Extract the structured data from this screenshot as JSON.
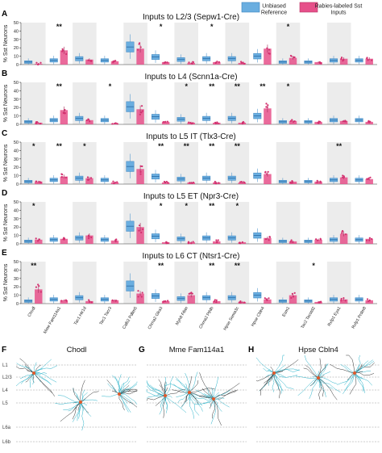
{
  "legend": {
    "reference_label": "Unbiased Reference",
    "sst_label": "Rabies-labeled Sst Inputs",
    "reference_color": "#6aaee0",
    "sst_color": "#e6508a",
    "position": "top-right"
  },
  "x_categories": [
    "Chodl",
    "Mme Fam114a1",
    "Tac1 Htr1d",
    "Tac1 Tacr3",
    "Calb2 Pdlim5",
    "Chrna2 Glra3",
    "Myh8 Fibin",
    "Chrna2 Pthlh",
    "Hpse Sema3c",
    "Hpse Cbln4",
    "Esm1",
    "Tac2 Tacstd2",
    "Rxfp1 Eya1",
    "Rxfp1 Prdm8"
  ],
  "y_label": "% Sst Neurons",
  "y_ticks": [
    "0",
    "10",
    "20",
    "30",
    "40",
    "50"
  ],
  "significance_marker": "**",
  "chart_data": [
    {
      "panel": "A",
      "type": "box",
      "title": "Inputs to L2/3 (Sepw1-Cre)",
      "ylim": [
        0,
        50
      ],
      "reference_values": [
        3,
        5,
        7,
        5,
        21,
        9,
        6,
        7,
        7,
        10,
        3,
        3,
        5,
        5
      ],
      "sst_values": [
        1,
        17,
        6,
        4,
        19,
        3,
        2,
        3,
        2,
        19,
        8,
        3,
        7,
        7
      ],
      "significance": [
        "",
        "**",
        "",
        "",
        "",
        "*",
        "",
        "*",
        "",
        "",
        "*",
        "",
        "",
        ""
      ]
    },
    {
      "panel": "B",
      "type": "box",
      "title": "Inputs to L4 (Scnn1a-Cre)",
      "ylim": [
        0,
        50
      ],
      "reference_values": [
        3,
        5,
        7,
        5,
        21,
        9,
        6,
        7,
        7,
        10,
        3,
        3,
        5,
        5
      ],
      "sst_values": [
        2,
        17,
        5,
        1,
        18,
        3,
        2,
        2,
        2,
        19,
        4,
        3,
        4,
        3
      ],
      "significance": [
        "",
        "**",
        "",
        "*",
        "",
        "",
        "*",
        "**",
        "**",
        "**",
        "*",
        "",
        "",
        ""
      ]
    },
    {
      "panel": "C",
      "type": "box",
      "title": "Inputs to L5 IT (Tlx3-Cre)",
      "ylim": [
        0,
        50
      ],
      "reference_values": [
        3,
        5,
        7,
        5,
        21,
        9,
        6,
        7,
        7,
        10,
        3,
        3,
        5,
        5
      ],
      "sst_values": [
        3,
        9,
        7,
        2,
        18,
        2,
        2,
        2,
        2,
        12,
        3,
        3,
        8,
        6
      ],
      "significance": [
        "*",
        "**",
        "*",
        "",
        "",
        "**",
        "**",
        "**",
        "**",
        "",
        "",
        "",
        "**",
        ""
      ]
    },
    {
      "panel": "D",
      "type": "box",
      "title": "Inputs to L5 ET (Npr3-Cre)",
      "ylim": [
        0,
        50
      ],
      "reference_values": [
        3,
        5,
        7,
        5,
        21,
        9,
        6,
        7,
        7,
        10,
        3,
        3,
        5,
        5
      ],
      "sst_values": [
        5,
        6,
        10,
        4,
        20,
        2,
        2,
        3,
        2,
        7,
        3,
        5,
        12,
        6
      ],
      "significance": [
        "*",
        "",
        "",
        "",
        "",
        "*",
        "*",
        "**",
        "*",
        "",
        "",
        "",
        "",
        ""
      ]
    },
    {
      "panel": "E",
      "type": "box",
      "title": "Inputs to L6 CT (Ntsr1-Cre)",
      "ylim": [
        0,
        50
      ],
      "reference_values": [
        3,
        5,
        7,
        5,
        21,
        9,
        6,
        7,
        7,
        10,
        3,
        3,
        5,
        5
      ],
      "sst_values": [
        17,
        4,
        3,
        4,
        12,
        3,
        10,
        3,
        2,
        5,
        10,
        2,
        5,
        4
      ],
      "significance": [
        "**",
        "",
        "",
        "",
        "",
        "**",
        "",
        "**",
        "**",
        "",
        "",
        "*",
        "",
        ""
      ]
    }
  ],
  "morphology_panels": [
    {
      "label": "F",
      "title": "Chodl"
    },
    {
      "label": "G",
      "title": "Mme Fam114a1"
    },
    {
      "label": "H",
      "title": "Hpse Cbln4"
    }
  ],
  "layer_labels": [
    "L1",
    "L2/3",
    "L4",
    "L5",
    "L6a",
    "L6b"
  ]
}
